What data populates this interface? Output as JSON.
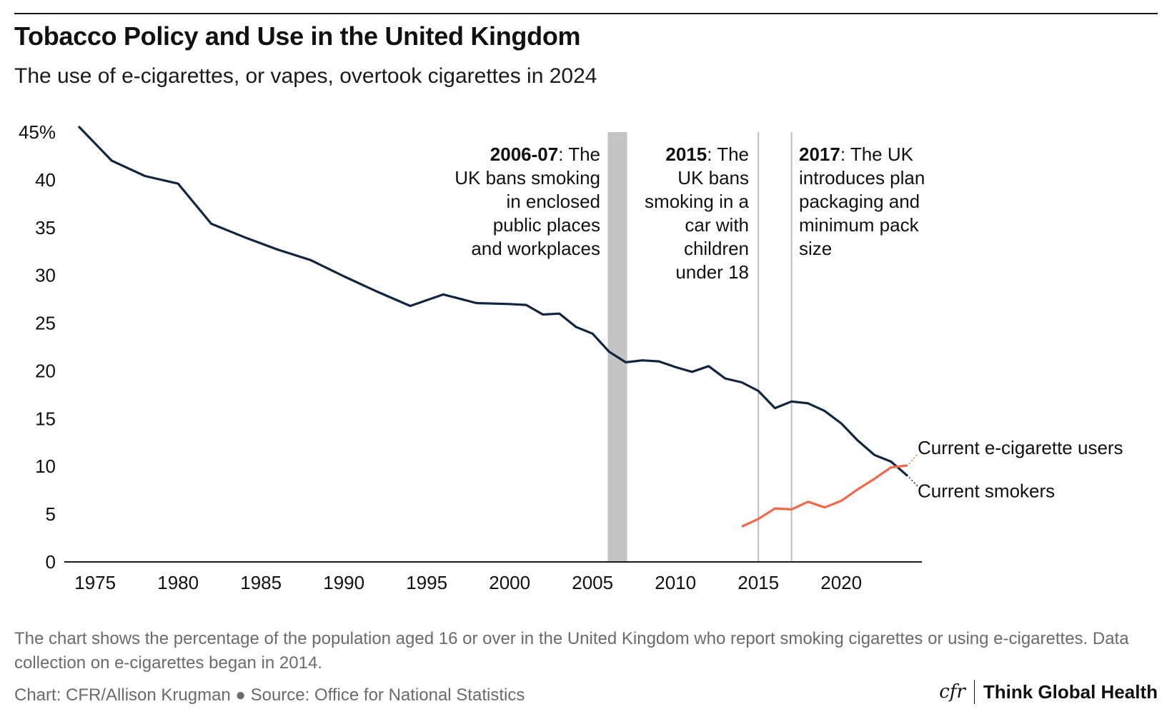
{
  "header": {
    "title": "Tobacco Policy and Use in the United Kingdom",
    "subtitle": "The use of e-cigarettes, or vapes, overtook cigarettes in 2024"
  },
  "footer": {
    "note": "The chart shows the percentage of the population aged 16 or over in the United Kingdom who report smoking cigarettes or using e-cigarettes. Data collection on e-cigarettes began in 2014.",
    "credit": "Chart: CFR/Allison Krugman ● Source: Office for National Statistics",
    "brand_mark": "cfr",
    "brand_name": "Think Global Health"
  },
  "colors": {
    "smokers": "#0f2540",
    "ecig": "#f0694a",
    "band": "#c4c4c4",
    "vline": "#bdbdbd",
    "axis": "#1a1a1a"
  },
  "chart_data": {
    "type": "line",
    "xlim": [
      1974,
      2024
    ],
    "ylim": [
      0,
      45
    ],
    "x_ticks": [
      1975,
      1980,
      1985,
      1990,
      1995,
      2000,
      2005,
      2010,
      2015,
      2020
    ],
    "y_ticks": [
      0,
      5,
      10,
      15,
      20,
      25,
      30,
      35,
      40,
      45
    ],
    "y_tick_labels": [
      "0",
      "5",
      "10",
      "15",
      "20",
      "25",
      "30",
      "35",
      "40",
      "45%"
    ],
    "grid": false,
    "series": [
      {
        "name": "Current smokers",
        "color": "#0f2540",
        "x": [
          1974,
          1976,
          1978,
          1980,
          1982,
          1984,
          1986,
          1988,
          1990,
          1992,
          1994,
          1996,
          1998,
          2000,
          2001,
          2002,
          2003,
          2004,
          2005,
          2006,
          2007,
          2008,
          2009,
          2010,
          2011,
          2012,
          2013,
          2014,
          2015,
          2016,
          2017,
          2018,
          2019,
          2020,
          2021,
          2022,
          2023,
          2024
        ],
        "values": [
          45.6,
          42,
          40.4,
          39.6,
          35.4,
          34,
          32.7,
          31.6,
          29.9,
          28.3,
          26.8,
          28,
          27.1,
          27,
          26.9,
          25.9,
          26,
          24.6,
          23.9,
          22,
          20.9,
          21.1,
          21,
          20.4,
          19.9,
          20.5,
          19.2,
          18.8,
          17.9,
          16.1,
          16.8,
          16.6,
          15.8,
          14.5,
          12.7,
          11.2,
          10.5,
          9
        ]
      },
      {
        "name": "Current e-cigarette users",
        "color": "#f0694a",
        "x": [
          2014,
          2015,
          2016,
          2017,
          2018,
          2019,
          2020,
          2021,
          2022,
          2023,
          2024
        ],
        "values": [
          3.7,
          4.5,
          5.6,
          5.5,
          6.3,
          5.7,
          6.4,
          7.6,
          8.7,
          9.9,
          10.1
        ]
      }
    ],
    "policy_events": [
      {
        "x_start": 2006,
        "x_end": 2007,
        "style": "band",
        "label_bold": "2006-07",
        "label_lines": [
          ": The",
          "UK bans smoking",
          "in enclosed",
          "public places",
          "and workplaces"
        ],
        "align": "right"
      },
      {
        "x_start": 2015,
        "x_end": 2015,
        "style": "line",
        "label_bold": "2015",
        "label_lines": [
          ": The",
          "UK bans",
          "smoking in a",
          "car with",
          "children",
          "under 18"
        ],
        "align": "right"
      },
      {
        "x_start": 2017,
        "x_end": 2017,
        "style": "line",
        "label_bold": "2017",
        "label_lines": [
          ": The UK",
          "introduces plan",
          "packaging and",
          "minimum pack",
          "size"
        ],
        "align": "left"
      }
    ]
  }
}
